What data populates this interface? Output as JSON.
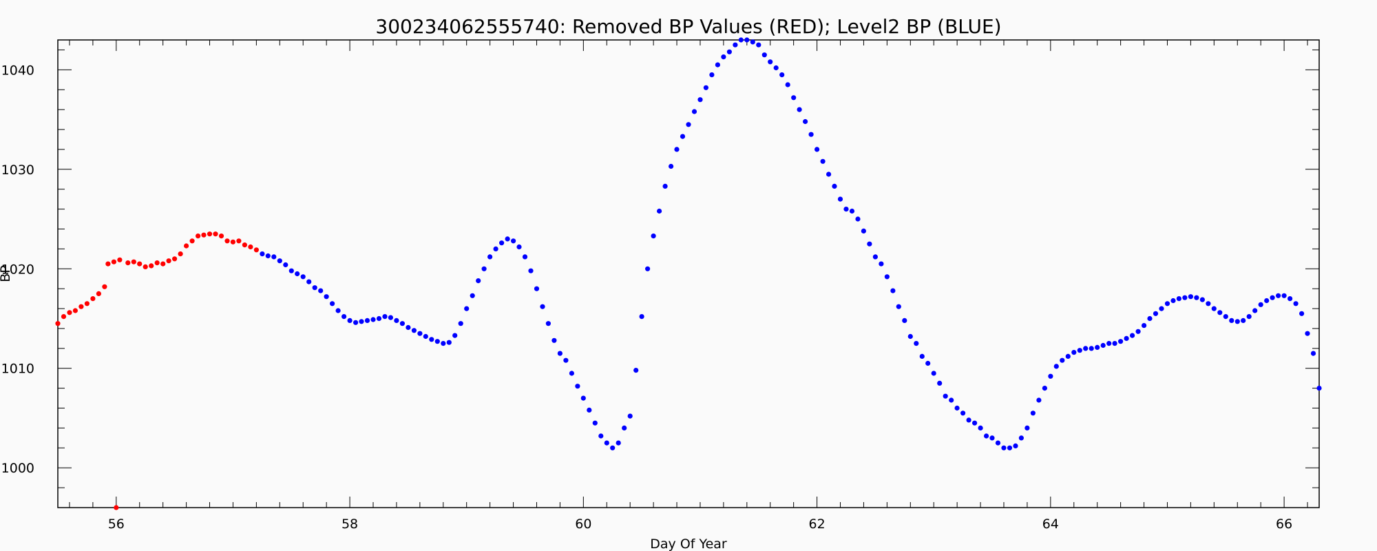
{
  "chart_data": {
    "type": "scatter",
    "title": "300234062555740: Removed BP Values (RED); Level2 BP (BLUE)",
    "xlabel": "Day Of Year",
    "ylabel": "BP",
    "xlim": [
      55.5,
      66.3
    ],
    "ylim": [
      996,
      1043
    ],
    "x_ticks": [
      56,
      58,
      60,
      62,
      64,
      66
    ],
    "x_tick_labels": [
      "56",
      "58",
      "60",
      "62",
      "64",
      "66"
    ],
    "y_ticks": [
      1000,
      1010,
      1020,
      1030,
      1040
    ],
    "y_tick_labels": [
      "1000",
      "1010",
      "1020",
      "1030",
      "1040"
    ],
    "grid": false,
    "colors": {
      "removed": "#ff0000",
      "level2": "#0000ff",
      "background": "#fafafa",
      "axis": "#000000"
    },
    "series": [
      {
        "color": "#ff0000",
        "points": [
          [
            55.5,
            1014.5
          ],
          [
            55.55,
            1015.2
          ],
          [
            55.6,
            1015.6
          ],
          [
            55.65,
            1015.8
          ],
          [
            55.7,
            1016.2
          ],
          [
            55.75,
            1016.5
          ],
          [
            55.8,
            1017.0
          ],
          [
            55.85,
            1017.5
          ],
          [
            55.9,
            1018.2
          ],
          [
            55.93,
            1020.5
          ],
          [
            55.98,
            1020.7
          ],
          [
            56.03,
            1020.9
          ],
          [
            56.1,
            1020.6
          ],
          [
            56.15,
            1020.7
          ],
          [
            56.2,
            1020.5
          ],
          [
            56.25,
            1020.2
          ],
          [
            56.3,
            1020.3
          ],
          [
            56.35,
            1020.6
          ],
          [
            56.4,
            1020.5
          ],
          [
            56.45,
            1020.8
          ],
          [
            56.5,
            1021.0
          ],
          [
            56.55,
            1021.5
          ],
          [
            56.6,
            1022.3
          ],
          [
            56.65,
            1022.8
          ],
          [
            56.7,
            1023.3
          ],
          [
            56.75,
            1023.4
          ],
          [
            56.8,
            1023.5
          ],
          [
            56.85,
            1023.5
          ],
          [
            56.9,
            1023.3
          ],
          [
            56.95,
            1022.8
          ],
          [
            57.0,
            1022.7
          ],
          [
            57.05,
            1022.8
          ],
          [
            57.1,
            1022.4
          ],
          [
            57.15,
            1022.2
          ],
          [
            57.2,
            1021.9
          ],
          [
            56.0,
            996.0
          ]
        ]
      },
      {
        "color": "#0000ff",
        "points": [
          [
            57.25,
            1021.5
          ],
          [
            57.3,
            1021.3
          ],
          [
            57.35,
            1021.2
          ],
          [
            57.4,
            1020.8
          ],
          [
            57.45,
            1020.4
          ],
          [
            57.5,
            1019.8
          ],
          [
            57.55,
            1019.5
          ],
          [
            57.6,
            1019.2
          ],
          [
            57.65,
            1018.7
          ],
          [
            57.7,
            1018.1
          ],
          [
            57.75,
            1017.8
          ],
          [
            57.8,
            1017.2
          ],
          [
            57.85,
            1016.5
          ],
          [
            57.9,
            1015.8
          ],
          [
            57.95,
            1015.2
          ],
          [
            58.0,
            1014.8
          ],
          [
            58.05,
            1014.6
          ],
          [
            58.1,
            1014.7
          ],
          [
            58.15,
            1014.8
          ],
          [
            58.2,
            1014.9
          ],
          [
            58.25,
            1015.0
          ],
          [
            58.3,
            1015.2
          ],
          [
            58.35,
            1015.1
          ],
          [
            58.4,
            1014.8
          ],
          [
            58.45,
            1014.5
          ],
          [
            58.5,
            1014.1
          ],
          [
            58.55,
            1013.8
          ],
          [
            58.6,
            1013.5
          ],
          [
            58.65,
            1013.2
          ],
          [
            58.7,
            1012.9
          ],
          [
            58.75,
            1012.7
          ],
          [
            58.8,
            1012.5
          ],
          [
            58.85,
            1012.6
          ],
          [
            58.9,
            1013.3
          ],
          [
            58.95,
            1014.5
          ],
          [
            59.0,
            1016.0
          ],
          [
            59.05,
            1017.3
          ],
          [
            59.1,
            1018.8
          ],
          [
            59.15,
            1020.0
          ],
          [
            59.2,
            1021.2
          ],
          [
            59.25,
            1022.0
          ],
          [
            59.3,
            1022.6
          ],
          [
            59.35,
            1023.0
          ],
          [
            59.4,
            1022.8
          ],
          [
            59.45,
            1022.2
          ],
          [
            59.5,
            1021.2
          ],
          [
            59.55,
            1019.8
          ],
          [
            59.6,
            1018.0
          ],
          [
            59.65,
            1016.2
          ],
          [
            59.7,
            1014.5
          ],
          [
            59.75,
            1012.8
          ],
          [
            59.8,
            1011.5
          ],
          [
            59.85,
            1010.8
          ],
          [
            59.9,
            1009.5
          ],
          [
            59.95,
            1008.2
          ],
          [
            60.0,
            1007.0
          ],
          [
            60.05,
            1005.8
          ],
          [
            60.1,
            1004.5
          ],
          [
            60.15,
            1003.2
          ],
          [
            60.2,
            1002.5
          ],
          [
            60.25,
            1002.0
          ],
          [
            60.3,
            1002.5
          ],
          [
            60.35,
            1004.0
          ],
          [
            60.4,
            1005.2
          ],
          [
            60.45,
            1009.8
          ],
          [
            60.5,
            1015.2
          ],
          [
            60.55,
            1020.0
          ],
          [
            60.6,
            1023.3
          ],
          [
            60.65,
            1025.8
          ],
          [
            60.7,
            1028.3
          ],
          [
            60.75,
            1030.3
          ],
          [
            60.8,
            1032.0
          ],
          [
            60.85,
            1033.3
          ],
          [
            60.9,
            1034.5
          ],
          [
            60.95,
            1035.8
          ],
          [
            61.0,
            1037.0
          ],
          [
            61.05,
            1038.2
          ],
          [
            61.1,
            1039.5
          ],
          [
            61.15,
            1040.5
          ],
          [
            61.2,
            1041.3
          ],
          [
            61.25,
            1041.8
          ],
          [
            61.3,
            1042.5
          ],
          [
            61.35,
            1043.0
          ],
          [
            61.4,
            1043.0
          ],
          [
            61.45,
            1042.8
          ],
          [
            61.5,
            1042.5
          ],
          [
            61.55,
            1041.5
          ],
          [
            61.6,
            1040.8
          ],
          [
            61.65,
            1040.2
          ],
          [
            61.7,
            1039.5
          ],
          [
            61.75,
            1038.5
          ],
          [
            61.8,
            1037.2
          ],
          [
            61.85,
            1036.0
          ],
          [
            61.9,
            1034.8
          ],
          [
            61.95,
            1033.5
          ],
          [
            62.0,
            1032.0
          ],
          [
            62.05,
            1030.8
          ],
          [
            62.1,
            1029.5
          ],
          [
            62.15,
            1028.3
          ],
          [
            62.2,
            1027.0
          ],
          [
            62.25,
            1026.0
          ],
          [
            62.3,
            1025.8
          ],
          [
            62.35,
            1025.0
          ],
          [
            62.4,
            1023.8
          ],
          [
            62.45,
            1022.5
          ],
          [
            62.5,
            1021.2
          ],
          [
            62.55,
            1020.5
          ],
          [
            62.6,
            1019.2
          ],
          [
            62.65,
            1017.8
          ],
          [
            62.7,
            1016.2
          ],
          [
            62.75,
            1014.8
          ],
          [
            62.8,
            1013.2
          ],
          [
            62.85,
            1012.5
          ],
          [
            62.9,
            1011.2
          ],
          [
            62.95,
            1010.5
          ],
          [
            63.0,
            1009.5
          ],
          [
            63.05,
            1008.5
          ],
          [
            63.1,
            1007.2
          ],
          [
            63.15,
            1006.8
          ],
          [
            63.2,
            1006.0
          ],
          [
            63.25,
            1005.5
          ],
          [
            63.3,
            1004.8
          ],
          [
            63.35,
            1004.5
          ],
          [
            63.4,
            1004.0
          ],
          [
            63.45,
            1003.2
          ],
          [
            63.5,
            1003.0
          ],
          [
            63.55,
            1002.5
          ],
          [
            63.6,
            1002.0
          ],
          [
            63.65,
            1002.0
          ],
          [
            63.7,
            1002.2
          ],
          [
            63.75,
            1003.0
          ],
          [
            63.8,
            1004.0
          ],
          [
            63.85,
            1005.5
          ],
          [
            63.9,
            1006.8
          ],
          [
            63.95,
            1008.0
          ],
          [
            64.0,
            1009.2
          ],
          [
            64.05,
            1010.2
          ],
          [
            64.1,
            1010.8
          ],
          [
            64.15,
            1011.2
          ],
          [
            64.2,
            1011.6
          ],
          [
            64.25,
            1011.8
          ],
          [
            64.3,
            1012.0
          ],
          [
            64.35,
            1012.0
          ],
          [
            64.4,
            1012.1
          ],
          [
            64.45,
            1012.3
          ],
          [
            64.5,
            1012.5
          ],
          [
            64.55,
            1012.5
          ],
          [
            64.6,
            1012.7
          ],
          [
            64.65,
            1013.0
          ],
          [
            64.7,
            1013.3
          ],
          [
            64.75,
            1013.7
          ],
          [
            64.8,
            1014.3
          ],
          [
            64.85,
            1015.0
          ],
          [
            64.9,
            1015.5
          ],
          [
            64.95,
            1016.0
          ],
          [
            65.0,
            1016.5
          ],
          [
            65.05,
            1016.8
          ],
          [
            65.1,
            1017.0
          ],
          [
            65.15,
            1017.1
          ],
          [
            65.2,
            1017.2
          ],
          [
            65.25,
            1017.1
          ],
          [
            65.3,
            1016.9
          ],
          [
            65.35,
            1016.5
          ],
          [
            65.4,
            1016.0
          ],
          [
            65.45,
            1015.6
          ],
          [
            65.5,
            1015.2
          ],
          [
            65.55,
            1014.8
          ],
          [
            65.6,
            1014.7
          ],
          [
            65.65,
            1014.8
          ],
          [
            65.7,
            1015.2
          ],
          [
            65.75,
            1015.8
          ],
          [
            65.8,
            1016.4
          ],
          [
            65.85,
            1016.8
          ],
          [
            65.9,
            1017.1
          ],
          [
            65.95,
            1017.3
          ],
          [
            66.0,
            1017.3
          ],
          [
            66.05,
            1017.0
          ],
          [
            66.1,
            1016.5
          ],
          [
            66.15,
            1015.5
          ],
          [
            66.2,
            1013.5
          ],
          [
            66.25,
            1011.5
          ],
          [
            66.3,
            1008.0
          ]
        ]
      }
    ]
  }
}
